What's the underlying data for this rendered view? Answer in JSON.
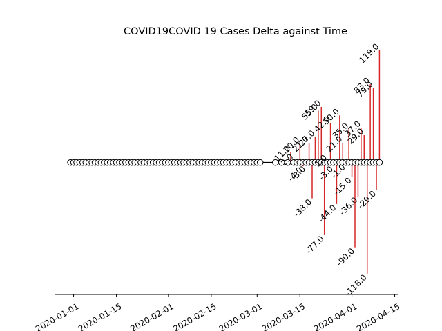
{
  "chart_data": {
    "type": "stem",
    "title": "COVID19COVID 19 Cases Delta against Time",
    "xlabel": "",
    "ylabel": "",
    "x_ticks": [
      "2020-01-01",
      "2020-01-15",
      "2020-02-01",
      "2020-02-15",
      "2020-03-01",
      "2020-03-15",
      "2020-04-01",
      "2020-04-15"
    ],
    "xlim": [
      "2019-12-26",
      "2020-04-16"
    ],
    "ylim": [
      -140,
      130
    ],
    "markers": {
      "start": "2019-12-31",
      "end": "2020-04-10",
      "gaps": [
        "2020-03-03",
        "2020-03-04",
        "2020-03-05",
        "2020-03-06",
        "2020-03-08",
        "2020-03-10",
        "2020-03-12"
      ]
    },
    "series": [
      {
        "points": [
          {
            "x": "2020-03-12",
            "y": 11.0,
            "label": "11.0"
          },
          {
            "x": "2020-03-13",
            "y": 2.0,
            "label": "2.0"
          },
          {
            "x": "2020-03-15",
            "y": 20.0,
            "label": "20.0"
          },
          {
            "x": "2020-03-16",
            "y": -4.0,
            "label": "-4.0"
          },
          {
            "x": "2020-03-17",
            "y": -3.0,
            "label": "-3.0"
          },
          {
            "x": "2020-03-18",
            "y": 21.0,
            "label": "21.0"
          },
          {
            "x": "2020-03-19",
            "y": -38.0,
            "label": "-38.0"
          },
          {
            "x": "2020-03-20",
            "y": 27.0,
            "label": "27.0"
          },
          {
            "x": "2020-03-21",
            "y": 55.0,
            "label": "55.0"
          },
          {
            "x": "2020-03-22",
            "y": 59.0,
            "label": "59.0"
          },
          {
            "x": "2020-03-23",
            "y": -77.0,
            "label": "-77.0"
          },
          {
            "x": "2020-03-24",
            "y": 1.0,
            "label": "1.0"
          },
          {
            "x": "2020-03-25",
            "y": 42.0,
            "label": "42.0"
          },
          {
            "x": "2020-03-26",
            "y": -3.0,
            "label": "-3.0"
          },
          {
            "x": "2020-03-27",
            "y": -44.0,
            "label": "-44.0"
          },
          {
            "x": "2020-03-28",
            "y": 50.0,
            "label": "50.0"
          },
          {
            "x": "2020-03-29",
            "y": 21.0,
            "label": "21.0"
          },
          {
            "x": "2020-03-30",
            "y": -1.0,
            "label": "-1.0"
          },
          {
            "x": "2020-03-31",
            "y": 35.0,
            "label": "35.0"
          },
          {
            "x": "2020-04-01",
            "y": -15.0,
            "label": "-15.0"
          },
          {
            "x": "2020-04-02",
            "y": -90.0,
            "label": "-90.0"
          },
          {
            "x": "2020-04-03",
            "y": -36.0,
            "label": "-36.0"
          },
          {
            "x": "2020-04-04",
            "y": 37.0,
            "label": "37.0"
          },
          {
            "x": "2020-04-05",
            "y": 29.0,
            "label": "29.0"
          },
          {
            "x": "2020-04-06",
            "y": -118.0,
            "label": "-118.0"
          },
          {
            "x": "2020-04-07",
            "y": 83.0,
            "label": "83.0"
          },
          {
            "x": "2020-04-08",
            "y": 79.0,
            "label": "79.0"
          },
          {
            "x": "2020-04-09",
            "y": -29.0,
            "label": "-29.0"
          },
          {
            "x": "2020-04-10",
            "y": 119.0,
            "label": "119.0"
          }
        ]
      }
    ],
    "colors": {
      "stem": "#d62728",
      "marker_fill": "#ffffff",
      "marker_edge": "#000000",
      "baseline": "#000000",
      "axis": "#000000"
    },
    "grid": false
  }
}
